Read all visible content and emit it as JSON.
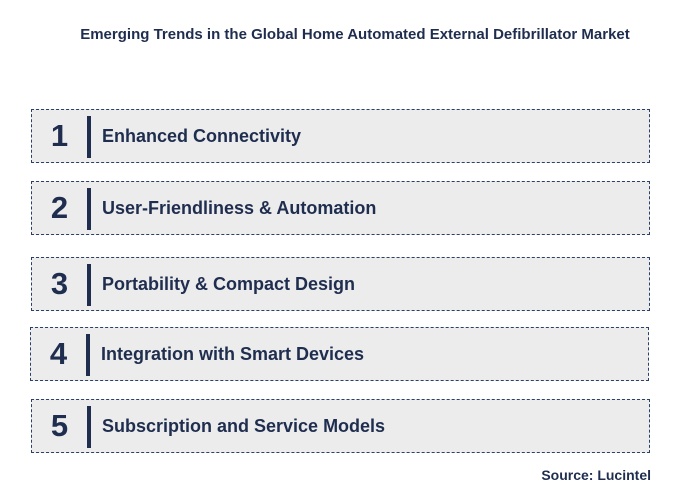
{
  "title": "Emerging Trends in the Global Home Automated External Defibrillator Market",
  "items": [
    {
      "number": "1",
      "label": "Enhanced Connectivity"
    },
    {
      "number": "2",
      "label": "User-Friendliness & Automation"
    },
    {
      "number": "3",
      "label": "Portability & Compact Design"
    },
    {
      "number": "4",
      "label": "Integration with Smart Devices"
    },
    {
      "number": "5",
      "label": "Subscription and Service Models"
    }
  ],
  "source": "Source: Lucintel"
}
